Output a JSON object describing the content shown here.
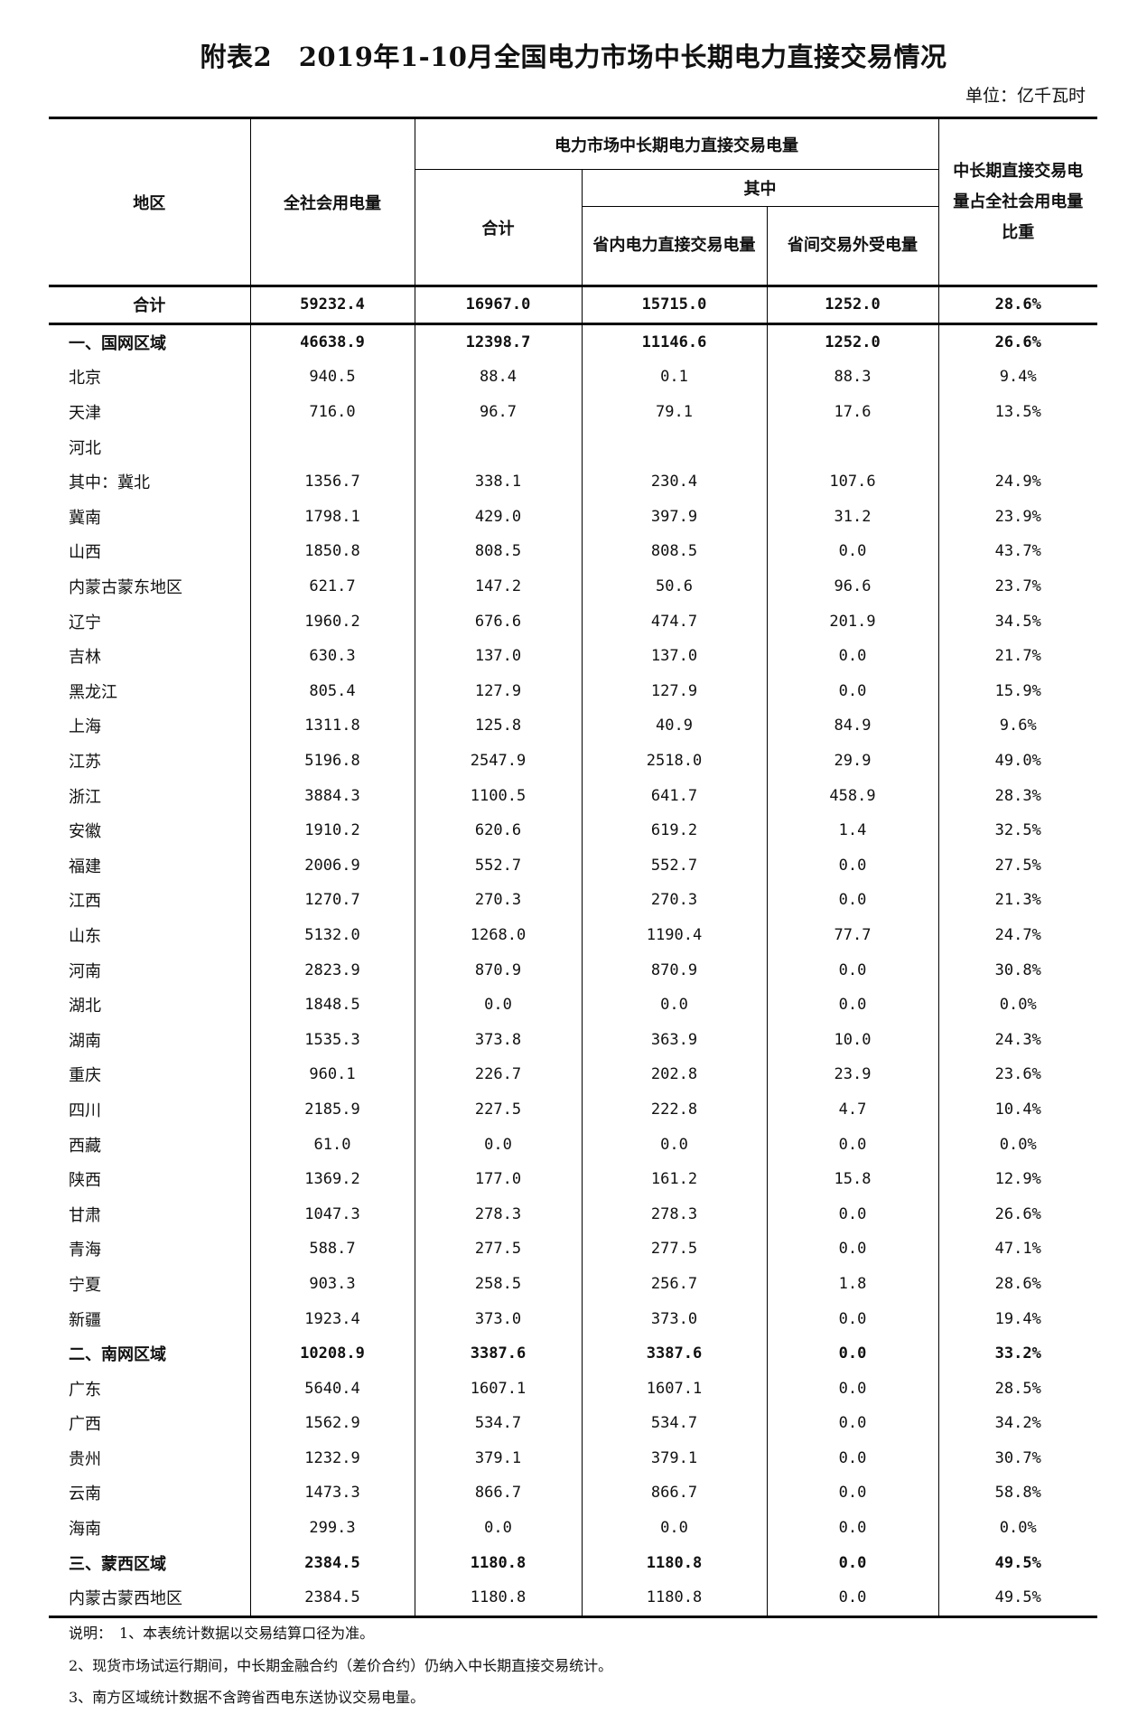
{
  "title": "附表2　2019年1-10月全国电力市场中长期电力直接交易情况",
  "unit": "单位：亿千瓦时",
  "headers": {
    "region": "地区",
    "total_consumption": "全社会用电量",
    "trade_group": "电力市场中长期电力直接交易电量",
    "sum": "合计",
    "of_which": "其中",
    "intra_province": "省内电力直接交易电量",
    "inter_province": "省间交易外受电量",
    "ratio": "中长期直接交易电量占全社会用电量比重"
  },
  "rows": [
    {
      "type": "total",
      "cells": [
        "合计",
        "59232.4",
        "16967.0",
        "15715.0",
        "1252.0",
        "28.6%"
      ]
    },
    {
      "type": "region",
      "cells": [
        "一、国网区域",
        "46638.9",
        "12398.7",
        "11146.6",
        "1252.0",
        "26.6%"
      ]
    },
    {
      "type": "item",
      "cells": [
        "北京",
        "940.5",
        "88.4",
        "0.1",
        "88.3",
        "9.4%"
      ]
    },
    {
      "type": "item",
      "cells": [
        "天津",
        "716.0",
        "96.7",
        "79.1",
        "17.6",
        "13.5%"
      ]
    },
    {
      "type": "item",
      "cells": [
        "河北",
        "",
        "",
        "",
        "",
        ""
      ]
    },
    {
      "type": "item",
      "cells": [
        "其中：冀北",
        "1356.7",
        "338.1",
        "230.4",
        "107.6",
        "24.9%"
      ]
    },
    {
      "type": "item",
      "cells": [
        "冀南",
        "1798.1",
        "429.0",
        "397.9",
        "31.2",
        "23.9%"
      ]
    },
    {
      "type": "item",
      "cells": [
        "山西",
        "1850.8",
        "808.5",
        "808.5",
        "0.0",
        "43.7%"
      ]
    },
    {
      "type": "item",
      "cells": [
        "内蒙古蒙东地区",
        "621.7",
        "147.2",
        "50.6",
        "96.6",
        "23.7%"
      ]
    },
    {
      "type": "item",
      "cells": [
        "辽宁",
        "1960.2",
        "676.6",
        "474.7",
        "201.9",
        "34.5%"
      ]
    },
    {
      "type": "item",
      "cells": [
        "吉林",
        "630.3",
        "137.0",
        "137.0",
        "0.0",
        "21.7%"
      ]
    },
    {
      "type": "item",
      "cells": [
        "黑龙江",
        "805.4",
        "127.9",
        "127.9",
        "0.0",
        "15.9%"
      ]
    },
    {
      "type": "item",
      "cells": [
        "上海",
        "1311.8",
        "125.8",
        "40.9",
        "84.9",
        "9.6%"
      ]
    },
    {
      "type": "item",
      "cells": [
        "江苏",
        "5196.8",
        "2547.9",
        "2518.0",
        "29.9",
        "49.0%"
      ]
    },
    {
      "type": "item",
      "cells": [
        "浙江",
        "3884.3",
        "1100.5",
        "641.7",
        "458.9",
        "28.3%"
      ]
    },
    {
      "type": "item",
      "cells": [
        "安徽",
        "1910.2",
        "620.6",
        "619.2",
        "1.4",
        "32.5%"
      ]
    },
    {
      "type": "item",
      "cells": [
        "福建",
        "2006.9",
        "552.7",
        "552.7",
        "0.0",
        "27.5%"
      ]
    },
    {
      "type": "item",
      "cells": [
        "江西",
        "1270.7",
        "270.3",
        "270.3",
        "0.0",
        "21.3%"
      ]
    },
    {
      "type": "item",
      "cells": [
        "山东",
        "5132.0",
        "1268.0",
        "1190.4",
        "77.7",
        "24.7%"
      ]
    },
    {
      "type": "item",
      "cells": [
        "河南",
        "2823.9",
        "870.9",
        "870.9",
        "0.0",
        "30.8%"
      ]
    },
    {
      "type": "item",
      "cells": [
        "湖北",
        "1848.5",
        "0.0",
        "0.0",
        "0.0",
        "0.0%"
      ]
    },
    {
      "type": "item",
      "cells": [
        "湖南",
        "1535.3",
        "373.8",
        "363.9",
        "10.0",
        "24.3%"
      ]
    },
    {
      "type": "item",
      "cells": [
        "重庆",
        "960.1",
        "226.7",
        "202.8",
        "23.9",
        "23.6%"
      ]
    },
    {
      "type": "item",
      "cells": [
        "四川",
        "2185.9",
        "227.5",
        "222.8",
        "4.7",
        "10.4%"
      ]
    },
    {
      "type": "item",
      "cells": [
        "西藏",
        "61.0",
        "0.0",
        "0.0",
        "0.0",
        "0.0%"
      ]
    },
    {
      "type": "item",
      "cells": [
        "陕西",
        "1369.2",
        "177.0",
        "161.2",
        "15.8",
        "12.9%"
      ]
    },
    {
      "type": "item",
      "cells": [
        "甘肃",
        "1047.3",
        "278.3",
        "278.3",
        "0.0",
        "26.6%"
      ]
    },
    {
      "type": "item",
      "cells": [
        "青海",
        "588.7",
        "277.5",
        "277.5",
        "0.0",
        "47.1%"
      ]
    },
    {
      "type": "item",
      "cells": [
        "宁夏",
        "903.3",
        "258.5",
        "256.7",
        "1.8",
        "28.6%"
      ]
    },
    {
      "type": "item",
      "cells": [
        "新疆",
        "1923.4",
        "373.0",
        "373.0",
        "0.0",
        "19.4%"
      ]
    },
    {
      "type": "region",
      "cells": [
        "二、南网区域",
        "10208.9",
        "3387.6",
        "3387.6",
        "0.0",
        "33.2%"
      ]
    },
    {
      "type": "item",
      "cells": [
        "广东",
        "5640.4",
        "1607.1",
        "1607.1",
        "0.0",
        "28.5%"
      ]
    },
    {
      "type": "item",
      "cells": [
        "广西",
        "1562.9",
        "534.7",
        "534.7",
        "0.0",
        "34.2%"
      ]
    },
    {
      "type": "item",
      "cells": [
        "贵州",
        "1232.9",
        "379.1",
        "379.1",
        "0.0",
        "30.7%"
      ]
    },
    {
      "type": "item",
      "cells": [
        "云南",
        "1473.3",
        "866.7",
        "866.7",
        "0.0",
        "58.8%"
      ]
    },
    {
      "type": "item",
      "cells": [
        "海南",
        "299.3",
        "0.0",
        "0.0",
        "0.0",
        "0.0%"
      ]
    },
    {
      "type": "region",
      "cells": [
        "三、蒙西区域",
        "2384.5",
        "1180.8",
        "1180.8",
        "0.0",
        "49.5%"
      ]
    },
    {
      "type": "item",
      "cells": [
        "内蒙古蒙西地区",
        "2384.5",
        "1180.8",
        "1180.8",
        "0.0",
        "49.5%"
      ]
    }
  ],
  "notes": [
    "说明：　1、本表统计数据以交易结算口径为准。",
    "2、现货市场试运行期间，中长期金融合约（差价合约）仍纳入中长期直接交易统计。",
    "3、南方区域统计数据不含跨省西电东送协议交易电量。"
  ]
}
